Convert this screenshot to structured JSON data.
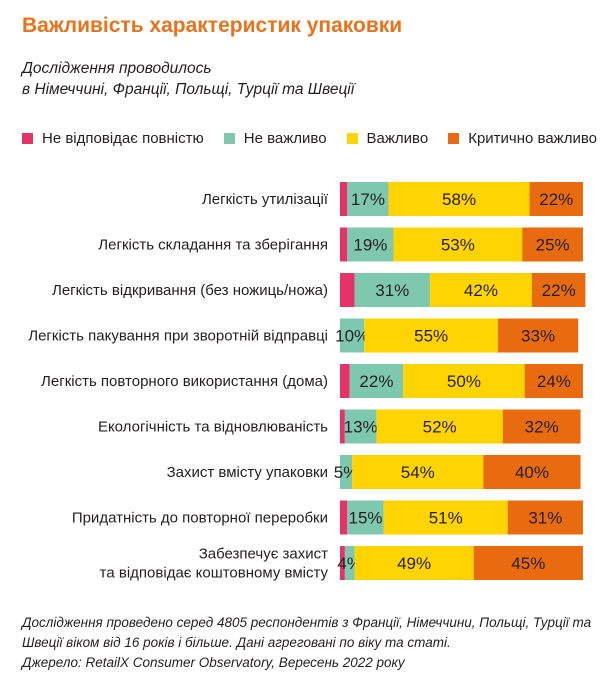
{
  "title": "Важливість характеристик упаковки",
  "subtitle": {
    "line1": "Дослідження проводилось",
    "line2": "в Німеччині, Франції, Польщі, Турції та Швеції"
  },
  "colors": {
    "title": "#e8731a",
    "Не відповідає повністю": "#e5336a",
    "Не важливо": "#7fc8b0",
    "Важливо": "#ffd400",
    "Критично важливо": "#e96b10"
  },
  "chart_data": {
    "type": "bar",
    "orientation": "horizontal",
    "stacked": true,
    "unit": "%",
    "categories": [
      [
        "Легкість утилізації"
      ],
      [
        "Легкість складання та зберігання"
      ],
      [
        "Легкість відкривання (без ножиць/ножа)"
      ],
      [
        "Легкість пакування при зворотній відправці"
      ],
      [
        "Легкість повторного використання (дома)"
      ],
      [
        "Екологічність та відновлюваність"
      ],
      [
        "Захист вмісту упаковки"
      ],
      [
        "Придатність до повторної переробки"
      ],
      [
        "Забезпечує захист",
        "та відповідає коштовному вмісту"
      ]
    ],
    "series": [
      {
        "name": "Не відповідає повністю",
        "values": [
          3,
          3,
          6,
          0,
          4,
          2,
          0,
          3,
          2
        ]
      },
      {
        "name": "Не важливо",
        "values": [
          17,
          19,
          31,
          10,
          22,
          13,
          5,
          15,
          4
        ]
      },
      {
        "name": "Важливо",
        "values": [
          58,
          53,
          42,
          55,
          50,
          52,
          54,
          51,
          49
        ]
      },
      {
        "name": "Критично важливо",
        "values": [
          22,
          25,
          22,
          33,
          24,
          32,
          40,
          31,
          45
        ]
      }
    ],
    "data_labels": [
      [
        null,
        "17%",
        "58%",
        "22%"
      ],
      [
        null,
        "19%",
        "53%",
        "25%"
      ],
      [
        null,
        "31%",
        "42%",
        "22%"
      ],
      [
        null,
        "10%",
        "55%",
        "33%"
      ],
      [
        null,
        "22%",
        "50%",
        "24%"
      ],
      [
        null,
        "13%",
        "52%",
        "32%"
      ],
      [
        null,
        "5%",
        "54%",
        "40%"
      ],
      [
        null,
        "15%",
        "51%",
        "31%"
      ],
      [
        null,
        "4%",
        "49%",
        "45%"
      ]
    ],
    "xlim": [
      0,
      100
    ],
    "grid": false,
    "legend_position": "top"
  },
  "footnote": {
    "line1": "Дослідження проведено серед 4805 респондентів з Франції, Німеччини, Польщі, Турції та",
    "line2": "Швеції віком від 16 років і більше. Дані  агреговані по віку та статі.",
    "line3": "Джерело: RetailX Consumer Observatory, Вересень 2022 року"
  }
}
